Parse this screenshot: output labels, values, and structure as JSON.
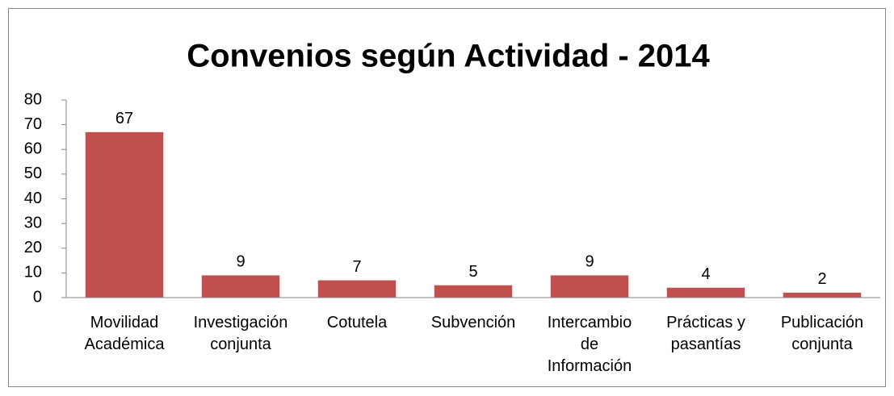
{
  "chart_data": {
    "type": "bar",
    "title": "Convenios según Actividad - 2014",
    "categories": [
      "Movilidad Académica",
      "Investigación conjunta",
      "Cotutela",
      "Subvención",
      "Intercambio de Información",
      "Prácticas y pasantías",
      "Publicación conjunta"
    ],
    "values": [
      67,
      9,
      7,
      5,
      9,
      4,
      2
    ],
    "color": "#c0504d",
    "ylim": [
      0,
      80
    ],
    "yticks": [
      0,
      10,
      20,
      30,
      40,
      50,
      60,
      70,
      80
    ],
    "grid": false
  }
}
